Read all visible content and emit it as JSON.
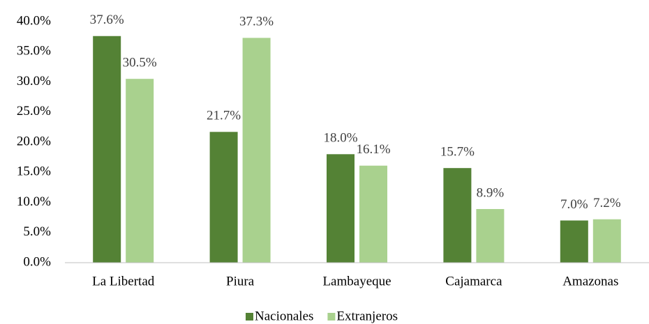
{
  "chart_data": {
    "type": "bar",
    "categories": [
      "La Libertad",
      "Piura",
      "Lambayeque",
      "Cajamarca",
      "Amazonas"
    ],
    "series": [
      {
        "name": "Nacionales",
        "color": "#548235",
        "values": [
          37.6,
          21.7,
          18.0,
          15.7,
          7.0
        ],
        "value_labels": [
          "37.6%",
          "21.7%",
          "18.0%",
          "15.7%",
          "7.0%"
        ]
      },
      {
        "name": "Extranjeros",
        "color": "#a9d18e",
        "values": [
          30.5,
          37.3,
          16.1,
          8.9,
          7.2
        ],
        "value_labels": [
          "30.5%",
          "37.3%",
          "16.1%",
          "8.9%",
          "7.2%"
        ]
      }
    ],
    "ylim": [
      0,
      40
    ],
    "yticks": [
      {
        "value": 0,
        "label": "0.0%"
      },
      {
        "value": 5,
        "label": "5.0%"
      },
      {
        "value": 10,
        "label": "10.0%"
      },
      {
        "value": 15,
        "label": "15.0%"
      },
      {
        "value": 20,
        "label": "20.0%"
      },
      {
        "value": 25,
        "label": "25.0%"
      },
      {
        "value": 30,
        "label": "30.0%"
      },
      {
        "value": 35,
        "label": "35.0%"
      },
      {
        "value": 40,
        "label": "40.0%"
      }
    ],
    "grid": false,
    "legend": "bottom"
  }
}
